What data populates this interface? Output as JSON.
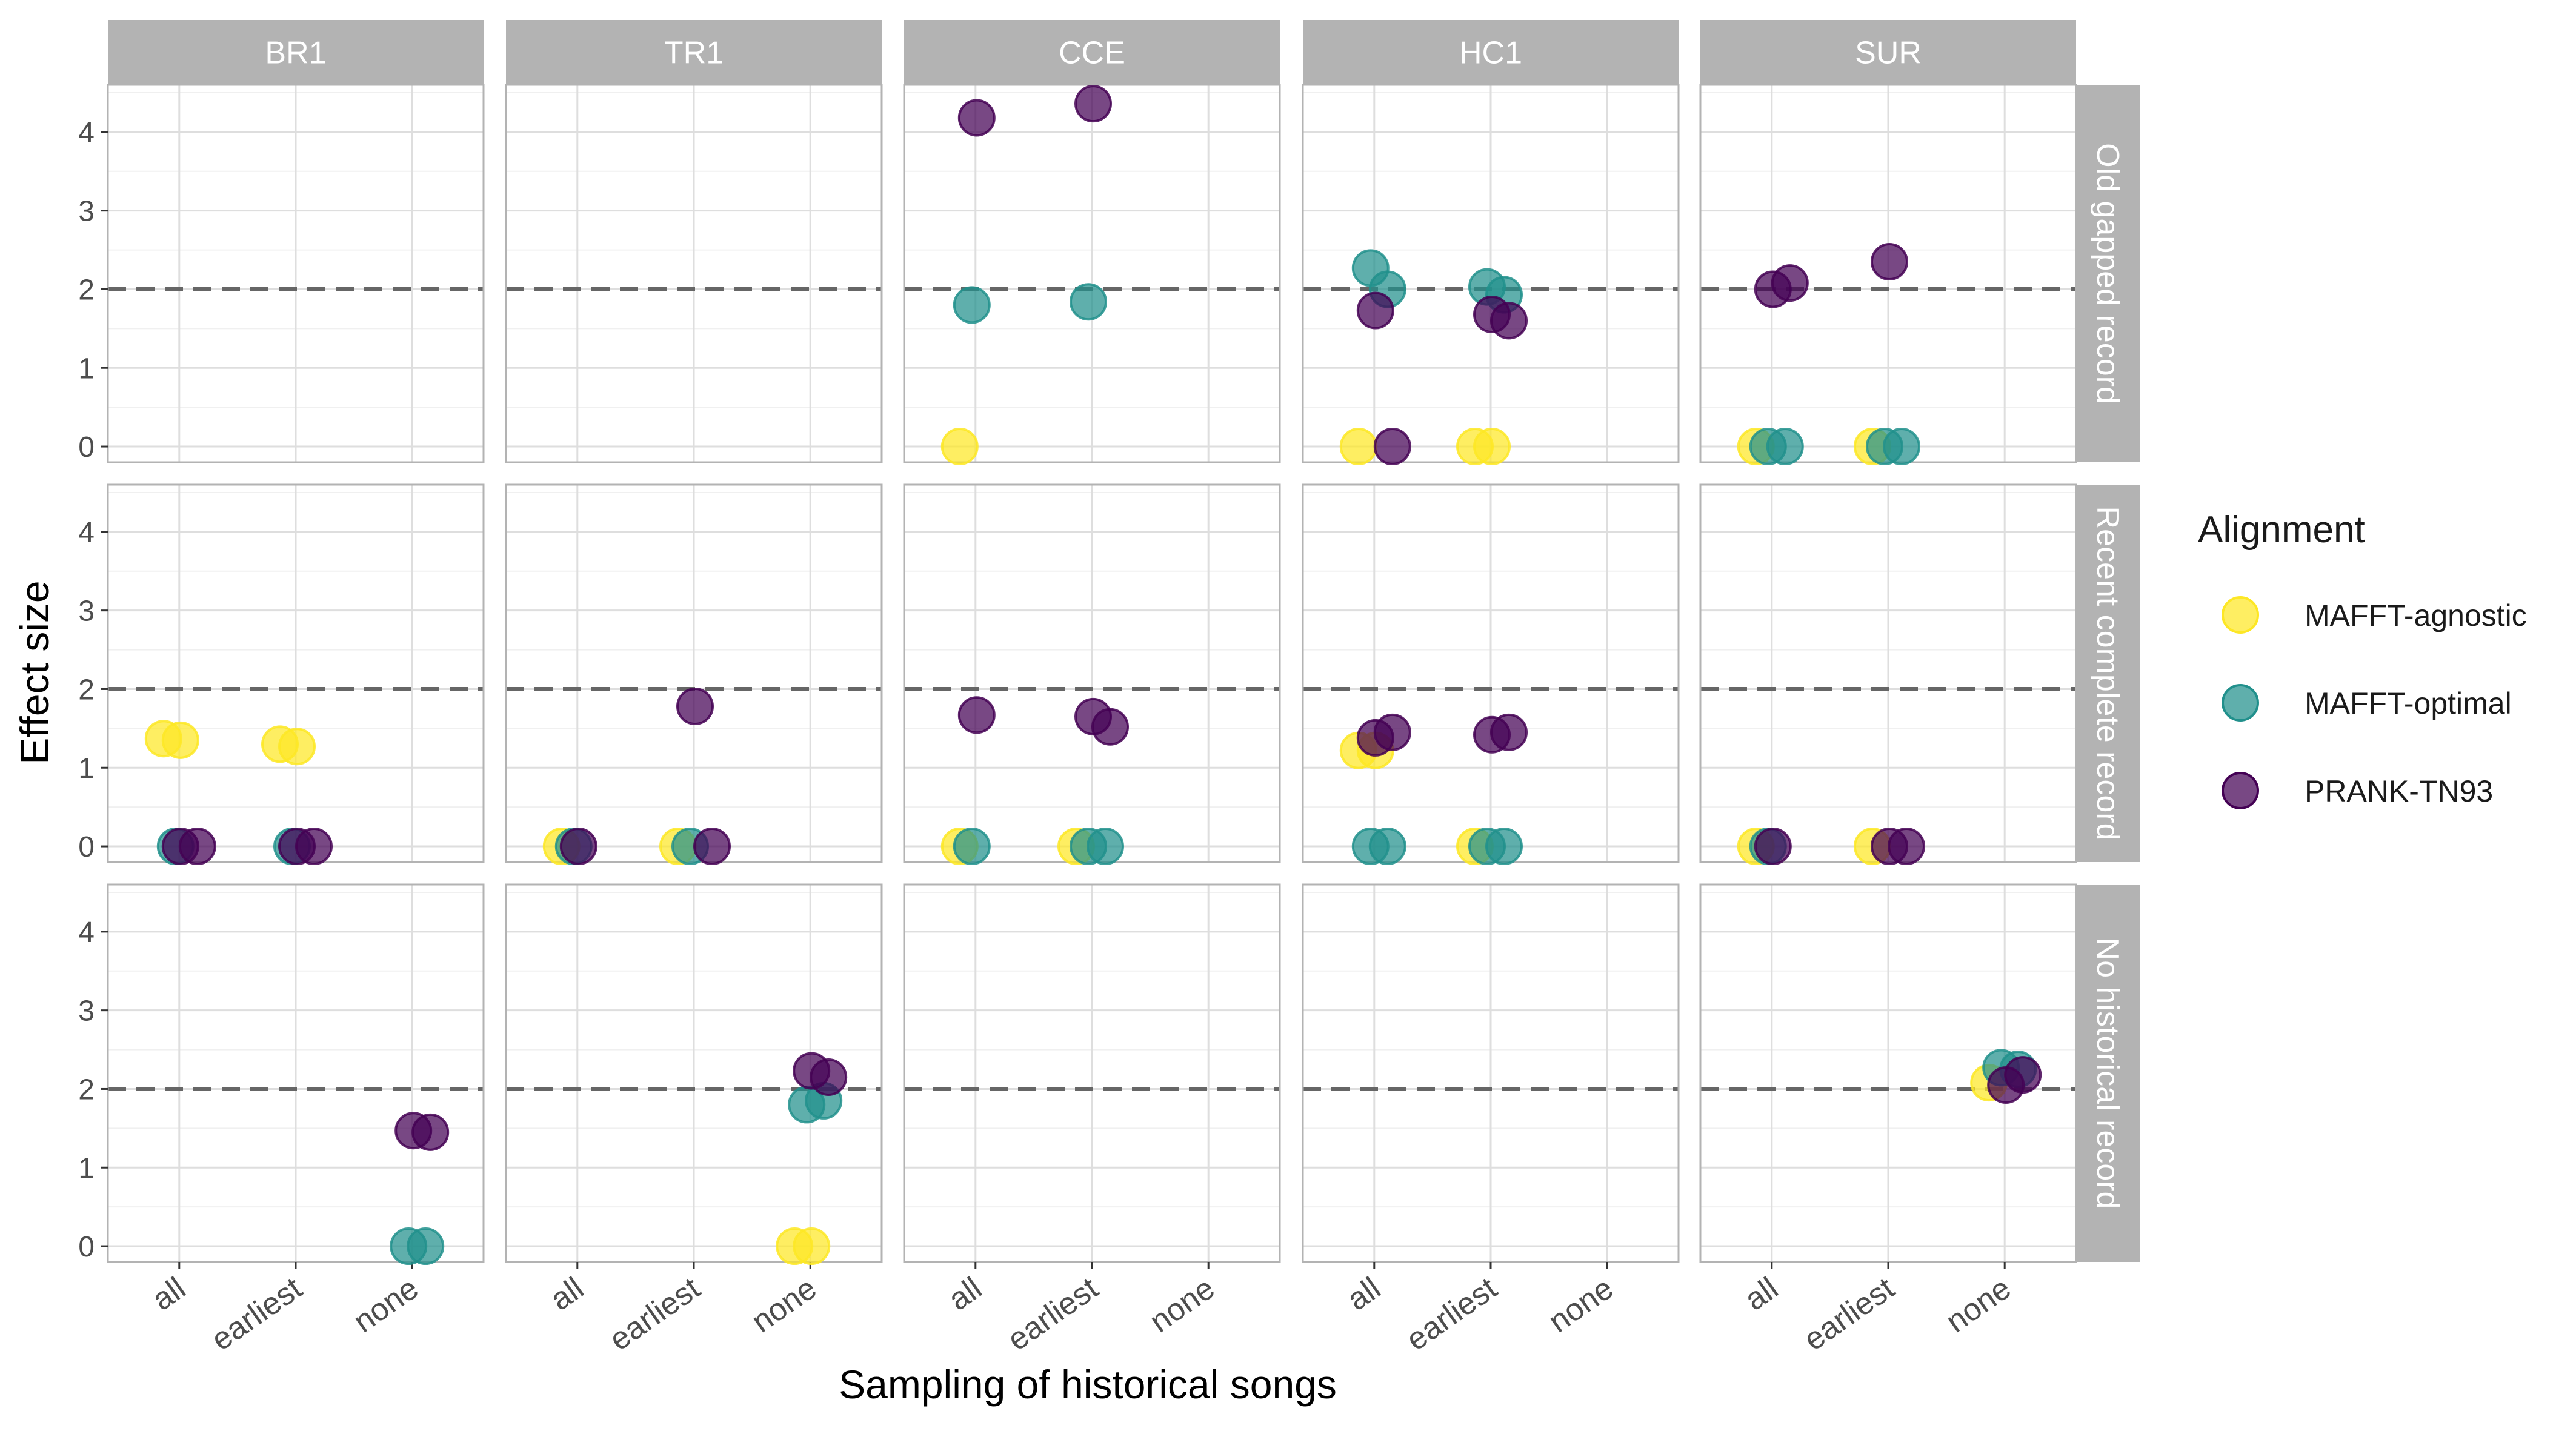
{
  "chart_data": {
    "type": "scatter",
    "facet_columns": [
      "BR1",
      "TR1",
      "CCE",
      "HC1",
      "SUR"
    ],
    "facet_rows": [
      "Old gapped record",
      "Recent complete record",
      "No historical record"
    ],
    "categories": [
      "all",
      "earliest",
      "none"
    ],
    "xlabel": "Sampling of historical songs",
    "ylabel": "Effect size",
    "ylim": [
      -0.2,
      4.6
    ],
    "yticks": [
      0,
      1,
      2,
      3,
      4
    ],
    "reference_line": 2,
    "grid": true,
    "legend": {
      "title": "Alignment",
      "position": "right",
      "entries": [
        {
          "name": "MAFFT-agnostic",
          "color": "#FDE725"
        },
        {
          "name": "MAFFT-optimal",
          "color": "#21908C"
        },
        {
          "name": "PRANK-TN93",
          "color": "#440154"
        }
      ]
    },
    "series": [
      {
        "name": "MAFFT-agnostic",
        "color": "#FDE725",
        "points": [
          {
            "col": "CCE",
            "row": "Old gapped record",
            "x": "all",
            "y": 0.0
          },
          {
            "col": "HC1",
            "row": "Old gapped record",
            "x": "all",
            "y": 0.0
          },
          {
            "col": "HC1",
            "row": "Old gapped record",
            "x": "earliest",
            "y": 0.0
          },
          {
            "col": "HC1",
            "row": "Old gapped record",
            "x": "earliest",
            "y": 0.0
          },
          {
            "col": "SUR",
            "row": "Old gapped record",
            "x": "all",
            "y": 0.0
          },
          {
            "col": "SUR",
            "row": "Old gapped record",
            "x": "earliest",
            "y": 0.0
          },
          {
            "col": "BR1",
            "row": "Recent complete record",
            "x": "all",
            "y": 1.37
          },
          {
            "col": "BR1",
            "row": "Recent complete record",
            "x": "all",
            "y": 1.35
          },
          {
            "col": "BR1",
            "row": "Recent complete record",
            "x": "earliest",
            "y": 1.3
          },
          {
            "col": "BR1",
            "row": "Recent complete record",
            "x": "earliest",
            "y": 1.27
          },
          {
            "col": "TR1",
            "row": "Recent complete record",
            "x": "all",
            "y": 0.0
          },
          {
            "col": "TR1",
            "row": "Recent complete record",
            "x": "earliest",
            "y": 0.0
          },
          {
            "col": "CCE",
            "row": "Recent complete record",
            "x": "all",
            "y": 0.0
          },
          {
            "col": "CCE",
            "row": "Recent complete record",
            "x": "earliest",
            "y": 0.0
          },
          {
            "col": "HC1",
            "row": "Recent complete record",
            "x": "all",
            "y": 1.22
          },
          {
            "col": "HC1",
            "row": "Recent complete record",
            "x": "all",
            "y": 1.22
          },
          {
            "col": "HC1",
            "row": "Recent complete record",
            "x": "earliest",
            "y": 0.0
          },
          {
            "col": "SUR",
            "row": "Recent complete record",
            "x": "all",
            "y": 0.0
          },
          {
            "col": "SUR",
            "row": "Recent complete record",
            "x": "earliest",
            "y": 0.0
          },
          {
            "col": "TR1",
            "row": "No historical record",
            "x": "none",
            "y": 0.0
          },
          {
            "col": "TR1",
            "row": "No historical record",
            "x": "none",
            "y": 0.0
          },
          {
            "col": "SUR",
            "row": "No historical record",
            "x": "none",
            "y": 2.08
          }
        ]
      },
      {
        "name": "MAFFT-optimal",
        "color": "#21908C",
        "points": [
          {
            "col": "CCE",
            "row": "Old gapped record",
            "x": "all",
            "y": 1.8
          },
          {
            "col": "CCE",
            "row": "Old gapped record",
            "x": "earliest",
            "y": 1.84
          },
          {
            "col": "HC1",
            "row": "Old gapped record",
            "x": "all",
            "y": 2.27
          },
          {
            "col": "HC1",
            "row": "Old gapped record",
            "x": "all",
            "y": 2.0
          },
          {
            "col": "HC1",
            "row": "Old gapped record",
            "x": "earliest",
            "y": 2.03
          },
          {
            "col": "HC1",
            "row": "Old gapped record",
            "x": "earliest",
            "y": 1.93
          },
          {
            "col": "SUR",
            "row": "Old gapped record",
            "x": "all",
            "y": 0.0
          },
          {
            "col": "SUR",
            "row": "Old gapped record",
            "x": "all",
            "y": 0.0
          },
          {
            "col": "SUR",
            "row": "Old gapped record",
            "x": "earliest",
            "y": 0.0
          },
          {
            "col": "SUR",
            "row": "Old gapped record",
            "x": "earliest",
            "y": 0.0
          },
          {
            "col": "BR1",
            "row": "Recent complete record",
            "x": "all",
            "y": 0.0
          },
          {
            "col": "BR1",
            "row": "Recent complete record",
            "x": "earliest",
            "y": 0.0
          },
          {
            "col": "TR1",
            "row": "Recent complete record",
            "x": "all",
            "y": 0.0
          },
          {
            "col": "TR1",
            "row": "Recent complete record",
            "x": "earliest",
            "y": 0.0
          },
          {
            "col": "CCE",
            "row": "Recent complete record",
            "x": "all",
            "y": 0.0
          },
          {
            "col": "CCE",
            "row": "Recent complete record",
            "x": "earliest",
            "y": 0.0
          },
          {
            "col": "CCE",
            "row": "Recent complete record",
            "x": "earliest",
            "y": 0.0
          },
          {
            "col": "HC1",
            "row": "Recent complete record",
            "x": "all",
            "y": 0.0
          },
          {
            "col": "HC1",
            "row": "Recent complete record",
            "x": "all",
            "y": 0.0
          },
          {
            "col": "HC1",
            "row": "Recent complete record",
            "x": "earliest",
            "y": 0.0
          },
          {
            "col": "HC1",
            "row": "Recent complete record",
            "x": "earliest",
            "y": 0.0
          },
          {
            "col": "SUR",
            "row": "Recent complete record",
            "x": "all",
            "y": 0.0
          },
          {
            "col": "BR1",
            "row": "No historical record",
            "x": "none",
            "y": 0.0
          },
          {
            "col": "BR1",
            "row": "No historical record",
            "x": "none",
            "y": 0.0
          },
          {
            "col": "TR1",
            "row": "No historical record",
            "x": "none",
            "y": 1.8
          },
          {
            "col": "TR1",
            "row": "No historical record",
            "x": "none",
            "y": 1.85
          },
          {
            "col": "SUR",
            "row": "No historical record",
            "x": "none",
            "y": 2.27
          },
          {
            "col": "SUR",
            "row": "No historical record",
            "x": "none",
            "y": 2.25
          }
        ]
      },
      {
        "name": "PRANK-TN93",
        "color": "#440154",
        "points": [
          {
            "col": "CCE",
            "row": "Old gapped record",
            "x": "all",
            "y": 4.18
          },
          {
            "col": "CCE",
            "row": "Old gapped record",
            "x": "earliest",
            "y": 4.36
          },
          {
            "col": "HC1",
            "row": "Old gapped record",
            "x": "all",
            "y": 1.73
          },
          {
            "col": "HC1",
            "row": "Old gapped record",
            "x": "all",
            "y": 0.0
          },
          {
            "col": "HC1",
            "row": "Old gapped record",
            "x": "earliest",
            "y": 1.68
          },
          {
            "col": "HC1",
            "row": "Old gapped record",
            "x": "earliest",
            "y": 1.6
          },
          {
            "col": "SUR",
            "row": "Old gapped record",
            "x": "all",
            "y": 2.0
          },
          {
            "col": "SUR",
            "row": "Old gapped record",
            "x": "all",
            "y": 2.08
          },
          {
            "col": "SUR",
            "row": "Old gapped record",
            "x": "earliest",
            "y": 2.35
          },
          {
            "col": "BR1",
            "row": "Recent complete record",
            "x": "all",
            "y": 0.0
          },
          {
            "col": "BR1",
            "row": "Recent complete record",
            "x": "all",
            "y": 0.0
          },
          {
            "col": "BR1",
            "row": "Recent complete record",
            "x": "earliest",
            "y": 0.0
          },
          {
            "col": "BR1",
            "row": "Recent complete record",
            "x": "earliest",
            "y": 0.0
          },
          {
            "col": "TR1",
            "row": "Recent complete record",
            "x": "all",
            "y": 0.0
          },
          {
            "col": "TR1",
            "row": "Recent complete record",
            "x": "earliest",
            "y": 1.78
          },
          {
            "col": "TR1",
            "row": "Recent complete record",
            "x": "earliest",
            "y": 0.0
          },
          {
            "col": "CCE",
            "row": "Recent complete record",
            "x": "all",
            "y": 1.67
          },
          {
            "col": "CCE",
            "row": "Recent complete record",
            "x": "earliest",
            "y": 1.65
          },
          {
            "col": "CCE",
            "row": "Recent complete record",
            "x": "earliest",
            "y": 1.52
          },
          {
            "col": "HC1",
            "row": "Recent complete record",
            "x": "all",
            "y": 1.38
          },
          {
            "col": "HC1",
            "row": "Recent complete record",
            "x": "all",
            "y": 1.45
          },
          {
            "col": "HC1",
            "row": "Recent complete record",
            "x": "earliest",
            "y": 1.42
          },
          {
            "col": "HC1",
            "row": "Recent complete record",
            "x": "earliest",
            "y": 1.45
          },
          {
            "col": "SUR",
            "row": "Recent complete record",
            "x": "all",
            "y": 0.0
          },
          {
            "col": "SUR",
            "row": "Recent complete record",
            "x": "earliest",
            "y": 0.0
          },
          {
            "col": "SUR",
            "row": "Recent complete record",
            "x": "earliest",
            "y": 0.0
          },
          {
            "col": "BR1",
            "row": "No historical record",
            "x": "none",
            "y": 1.47
          },
          {
            "col": "BR1",
            "row": "No historical record",
            "x": "none",
            "y": 1.45
          },
          {
            "col": "TR1",
            "row": "No historical record",
            "x": "none",
            "y": 2.23
          },
          {
            "col": "TR1",
            "row": "No historical record",
            "x": "none",
            "y": 2.15
          },
          {
            "col": "SUR",
            "row": "No historical record",
            "x": "none",
            "y": 2.05
          },
          {
            "col": "SUR",
            "row": "No historical record",
            "x": "none",
            "y": 2.18
          }
        ]
      }
    ]
  }
}
